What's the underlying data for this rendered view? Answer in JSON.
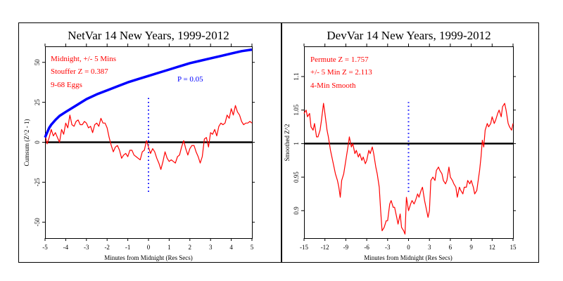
{
  "chart_data": [
    {
      "type": "line",
      "title": "NetVar 14 New Years, 1999-2012",
      "xlabel": "Minutes from Midnight (Res Secs)",
      "ylabel": "Cumsum (Z^2 - 1)",
      "xlim": [
        -5,
        5
      ],
      "ylim": [
        -60,
        60
      ],
      "xticks": [
        -5,
        -4,
        -3,
        -2,
        -1,
        0,
        1,
        2,
        3,
        4,
        5
      ],
      "yticks": [
        -50,
        -25,
        0,
        25,
        50
      ],
      "baseline": 0,
      "marker_line": {
        "x": 0,
        "y_range": [
          -31,
          28
        ],
        "color": "#0000ff"
      },
      "annotations": [
        {
          "text": "Midnight, +/- 5 Mins",
          "color": "#ff0000"
        },
        {
          "text": "Stouffer Z = 0.387",
          "color": "#ff0000"
        },
        {
          "text": "9-68 Eggs",
          "color": "#ff0000"
        },
        {
          "text": "P = 0.05",
          "color": "#0000ff"
        }
      ],
      "series": [
        {
          "color": "#ff0000",
          "x": [
            -5,
            -4.9,
            -4.8,
            -4.7,
            -4.6,
            -4.5,
            -4.4,
            -4.3,
            -4.2,
            -4.1,
            -4,
            -3.9,
            -3.8,
            -3.7,
            -3.6,
            -3.5,
            -3.4,
            -3.3,
            -3.2,
            -3.1,
            -3,
            -2.9,
            -2.8,
            -2.7,
            -2.6,
            -2.5,
            -2.4,
            -2.3,
            -2.2,
            -2.1,
            -2,
            -1.9,
            -1.8,
            -1.7,
            -1.6,
            -1.5,
            -1.4,
            -1.3,
            -1.2,
            -1.1,
            -1,
            -0.9,
            -0.8,
            -0.7,
            -0.6,
            -0.5,
            -0.4,
            -0.3,
            -0.2,
            -0.1,
            0,
            0.1,
            0.2,
            0.3,
            0.4,
            0.5,
            0.6,
            0.7,
            0.8,
            0.9,
            1,
            1.1,
            1.2,
            1.3,
            1.4,
            1.5,
            1.6,
            1.7,
            1.8,
            1.9,
            2,
            2.1,
            2.2,
            2.3,
            2.4,
            2.5,
            2.6,
            2.7,
            2.8,
            2.9,
            3,
            3.1,
            3.2,
            3.3,
            3.4,
            3.5,
            3.6,
            3.7,
            3.8,
            3.9,
            4,
            4.1,
            4.2,
            4.3,
            4.4,
            4.5,
            4.6,
            4.7,
            4.8,
            4.9,
            5
          ],
          "y": [
            5,
            -1,
            3,
            8,
            4,
            6,
            3,
            0,
            8,
            5,
            12,
            9,
            17,
            11,
            10,
            13,
            14,
            11,
            11,
            13,
            12,
            9,
            10,
            6,
            11,
            12,
            10,
            15,
            12,
            12,
            9,
            3,
            -2,
            -6,
            -3,
            -2,
            -5,
            -10,
            -8,
            -7,
            -9,
            -5,
            -5,
            -8,
            -9,
            -10,
            -11,
            -6,
            -5,
            1,
            -3,
            -7,
            -4,
            -6,
            -10,
            -13,
            -17,
            -12,
            -6,
            -10,
            -12,
            -11,
            -12,
            -13,
            -9,
            -8,
            -3,
            1,
            -4,
            -8,
            -4,
            -2,
            -2,
            -6,
            -9,
            -13,
            -9,
            2,
            3,
            -3,
            6,
            5,
            8,
            4,
            10,
            12,
            11,
            12,
            17,
            15,
            21,
            17,
            23,
            19,
            17,
            13,
            11,
            12,
            12,
            13,
            12
          ]
        },
        {
          "name": "P = 0.05",
          "color": "#0000ff",
          "x": [
            -5,
            -4.9,
            -4.8,
            -4.7,
            -4.6,
            -4.5,
            -4.3,
            -4,
            -3.5,
            -3,
            -2.5,
            -2,
            -1.5,
            -1,
            -0.5,
            0,
            0.5,
            1,
            1.5,
            2,
            2.5,
            3,
            3.5,
            4,
            4.5,
            5
          ],
          "y": [
            3,
            6,
            9,
            11,
            12.5,
            14,
            16.5,
            19,
            23,
            27,
            30,
            32.5,
            35,
            37.5,
            39.5,
            41.5,
            43.5,
            45.5,
            47.5,
            49.5,
            51,
            52.5,
            54,
            55.5,
            57,
            58
          ]
        }
      ]
    },
    {
      "type": "line",
      "title": "DevVar 14 New Years, 1999-2012",
      "xlabel": "Minutes from Midnight (Res Secs)",
      "ylabel": "Smoothed Z^2",
      "xlim": [
        -15,
        15
      ],
      "ylim": [
        0.859,
        1.145
      ],
      "xticks": [
        -15,
        -12,
        -9,
        -6,
        -3,
        0,
        3,
        6,
        9,
        12,
        15
      ],
      "yticks": [
        0.9,
        0.95,
        1,
        1.05,
        1.1
      ],
      "baseline": 1,
      "marker_line": {
        "x": 0,
        "y_range": [
          0.928,
          1.062
        ],
        "color": "#0000ff"
      },
      "annotations": [
        {
          "text": "Permute Z = 1.757",
          "color": "#ff0000"
        },
        {
          "text": "+/- 5 Min Z = 2.113",
          "color": "#ff0000"
        },
        {
          "text": "4-Min Smooth",
          "color": "#ff0000"
        }
      ],
      "series": [
        {
          "color": "#ff0000",
          "x": [
            -15,
            -14.7,
            -14.5,
            -14.2,
            -14,
            -13.7,
            -13.5,
            -13.2,
            -13,
            -12.7,
            -12.5,
            -12.2,
            -12,
            -11.7,
            -11.5,
            -11.2,
            -11,
            -10.7,
            -10.5,
            -10.2,
            -10,
            -9.8,
            -9.6,
            -9.3,
            -9,
            -8.7,
            -8.5,
            -8.2,
            -8,
            -7.7,
            -7.5,
            -7.2,
            -7,
            -6.7,
            -6.5,
            -6.2,
            -6,
            -5.7,
            -5.5,
            -5.2,
            -5,
            -4.7,
            -4.5,
            -4.2,
            -4,
            -3.8,
            -3.5,
            -3.2,
            -3,
            -2.7,
            -2.5,
            -2.2,
            -2,
            -1.7,
            -1.5,
            -1.2,
            -1,
            -0.7,
            -0.5,
            -0.3,
            0,
            0.3,
            0.5,
            0.8,
            1,
            1.3,
            1.5,
            1.8,
            2,
            2.3,
            2.5,
            2.8,
            3,
            3.2,
            3.5,
            3.8,
            4,
            4.3,
            4.5,
            4.8,
            5,
            5.3,
            5.5,
            5.8,
            6,
            6.3,
            6.5,
            6.8,
            7,
            7.3,
            7.5,
            7.8,
            8,
            8.3,
            8.5,
            8.8,
            9,
            9.3,
            9.5,
            9.8,
            10,
            10.2,
            10.4,
            10.6,
            10.8,
            11,
            11.3,
            11.5,
            11.8,
            12,
            12.3,
            12.5,
            12.8,
            13,
            13.3,
            13.5,
            13.8,
            14,
            14.3,
            14.5,
            14.8,
            15
          ],
          "y": [
            1.045,
            1.05,
            1.04,
            1.045,
            1.025,
            1.02,
            1.03,
            1.01,
            1.01,
            1.02,
            1.035,
            1.06,
            1.045,
            1.02,
            1.01,
            0.99,
            0.98,
            0.965,
            0.955,
            0.945,
            0.935,
            0.92,
            0.945,
            0.955,
            0.975,
            0.995,
            1.01,
            0.995,
            1.0,
            0.985,
            0.99,
            0.98,
            0.985,
            0.975,
            0.98,
            0.97,
            0.975,
            0.99,
            0.985,
            0.995,
            0.985,
            0.965,
            0.955,
            0.935,
            0.9,
            0.87,
            0.875,
            0.885,
            0.885,
            0.91,
            0.915,
            0.905,
            0.905,
            0.89,
            0.88,
            0.895,
            0.875,
            0.87,
            0.865,
            0.92,
            0.9,
            0.91,
            0.915,
            0.91,
            0.915,
            0.925,
            0.92,
            0.93,
            0.935,
            0.915,
            0.905,
            0.89,
            0.9,
            0.945,
            0.95,
            0.945,
            0.96,
            0.965,
            0.96,
            0.955,
            0.945,
            0.94,
            0.945,
            0.965,
            0.95,
            0.945,
            0.94,
            0.935,
            0.92,
            0.935,
            0.93,
            0.925,
            0.935,
            0.935,
            0.945,
            0.94,
            0.945,
            0.935,
            0.925,
            0.93,
            0.945,
            0.96,
            0.98,
            1.005,
            0.995,
            1.02,
            1.03,
            1.025,
            1.03,
            1.04,
            1.03,
            1.035,
            1.045,
            1.05,
            1.04,
            1.055,
            1.06,
            1.05,
            1.03,
            1.025,
            1.02,
            1.03
          ]
        }
      ]
    }
  ]
}
